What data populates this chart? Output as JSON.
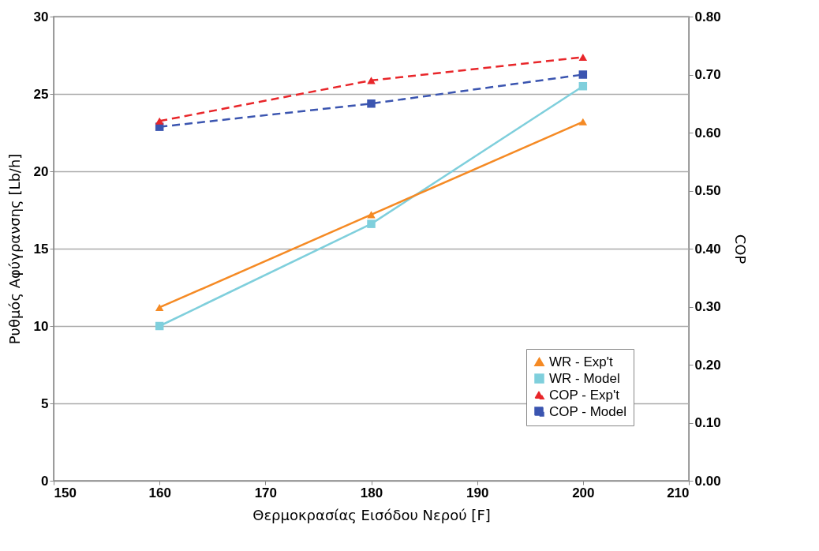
{
  "chart_data": {
    "type": "line",
    "xlabel": "Θερμοκρασίας Εισόδου Νερού [F]",
    "ylabel": "Ρυθμός Αφύγρανσης [Lb/h]",
    "y2label": "COP",
    "x": [
      160,
      180,
      200
    ],
    "series": [
      {
        "name": "WR - Exp't",
        "color": "#f58a24",
        "values": [
          11.2,
          17.2,
          23.2
        ],
        "marker": "triangle",
        "line_style": "solid"
      },
      {
        "name": "WR - Model",
        "color": "#7fcfdc",
        "values": [
          10.0,
          16.6,
          25.5
        ],
        "marker": "square",
        "line_style": "solid"
      },
      {
        "name": "COP - Exp't",
        "color": "#e8262a",
        "values": [
          0.62,
          0.69,
          0.73
        ],
        "marker": "triangle",
        "line_style": "dashed",
        "axis": "y2"
      },
      {
        "name": "COP - Model",
        "color": "#3b55b0",
        "values": [
          0.61,
          0.65,
          0.7
        ],
        "marker": "square",
        "line_style": "dashed",
        "axis": "y2"
      }
    ],
    "xlim": [
      150,
      210
    ],
    "xticks": [
      150,
      160,
      170,
      180,
      190,
      200,
      210
    ],
    "ylim": [
      0,
      30
    ],
    "yticks": [
      0,
      5,
      10,
      15,
      20,
      25,
      30
    ],
    "y2lim": [
      0,
      0.8
    ],
    "y2ticks": [
      {
        "value": 0,
        "label": "0.00"
      },
      {
        "value": 0.1,
        "label": "0.10"
      },
      {
        "value": 0.2,
        "label": "0.20"
      },
      {
        "value": 0.3,
        "label": "0.30"
      },
      {
        "value": 0.4,
        "label": "0.40"
      },
      {
        "value": 0.5,
        "label": "0.50"
      },
      {
        "value": 0.6,
        "label": "0.60"
      },
      {
        "value": 0.7,
        "label": "0.70"
      },
      {
        "value": 0.8,
        "label": "0.80"
      }
    ],
    "grid": "y",
    "legend": "bottom right"
  }
}
